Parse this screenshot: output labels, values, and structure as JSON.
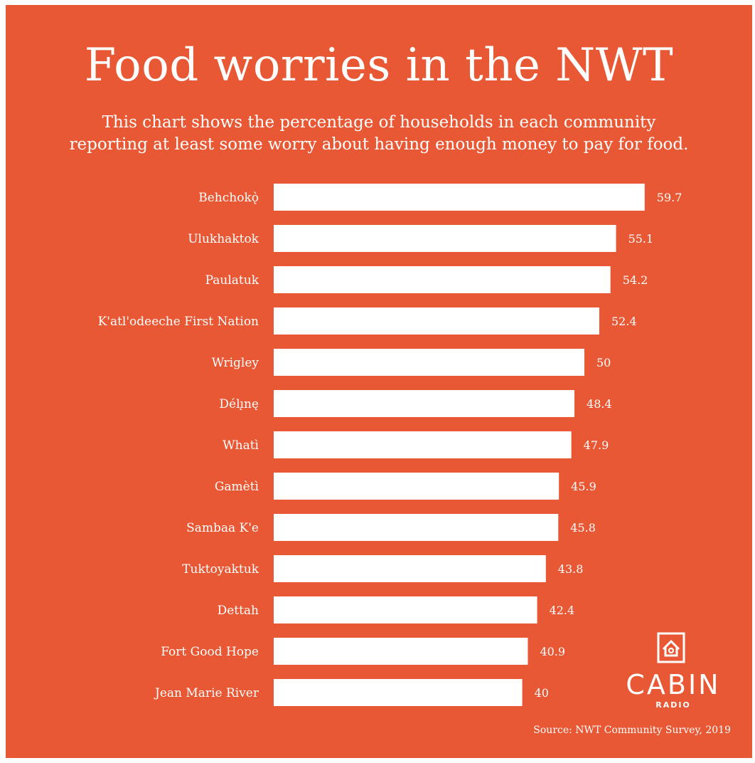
{
  "chart_data": {
    "type": "bar",
    "orientation": "horizontal",
    "title": "Food worries in the NWT",
    "subtitle": [
      "This chart shows the percentage of households in each community",
      "reporting at least some worry about having enough money to pay for food."
    ],
    "categories": [
      "Behchokǫ̀",
      "Ulukhaktok",
      "Paulatuk",
      "K'atl'odeeche First Nation",
      "Wrigley",
      "Délı̨nę",
      "Whatì",
      "Gamètì",
      "Sambaa K'e",
      "Tuktoyaktuk",
      "Dettah",
      "Fort Good Hope",
      "Jean Marie River"
    ],
    "values": [
      59.7,
      55.1,
      54.2,
      52.4,
      50,
      48.4,
      47.9,
      45.9,
      45.8,
      43.8,
      42.4,
      40.9,
      40
    ],
    "value_labels": [
      "59.7",
      "55.1",
      "54.2",
      "52.4",
      "50",
      "48.4",
      "47.9",
      "45.9",
      "45.8",
      "43.8",
      "42.4",
      "40.9",
      "40"
    ],
    "xlabel": "",
    "ylabel": "",
    "grid": false,
    "colors": {
      "background": "#e95834",
      "bar": "#ffffff",
      "text": "#ffffff"
    }
  },
  "logo": {
    "name": "CABIN",
    "sub": "RADIO",
    "icon": "house-icon"
  },
  "source": "Source: NWT Community Survey, 2019"
}
